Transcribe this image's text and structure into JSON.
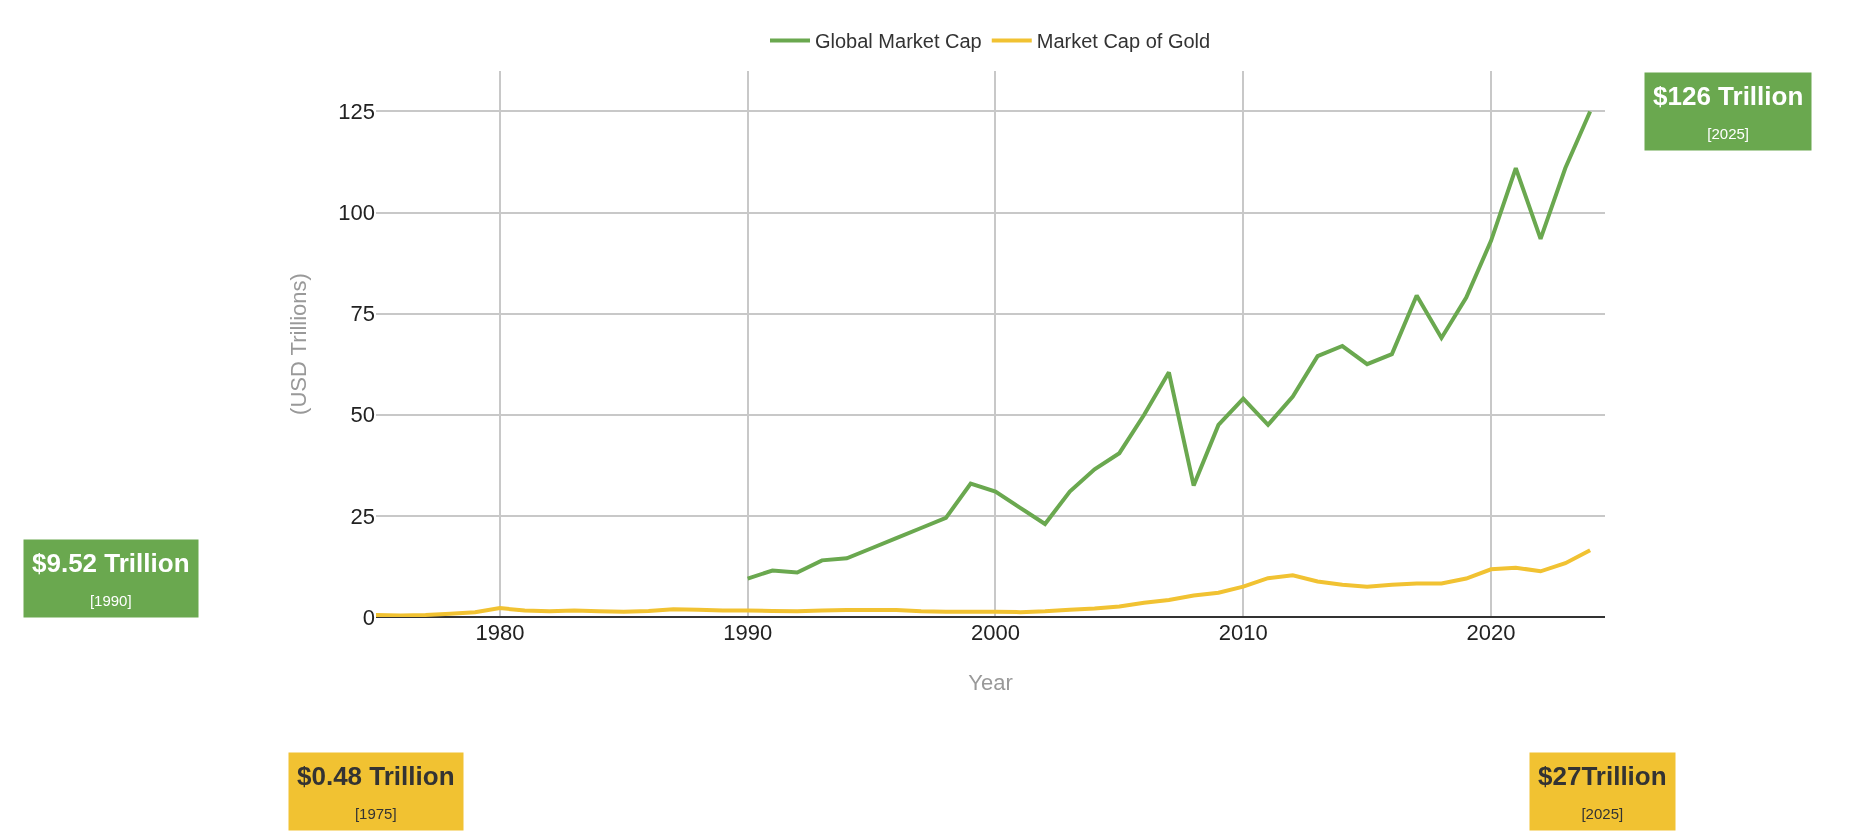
{
  "chart_data": {
    "type": "line",
    "xlabel": "Year",
    "ylabel": "(USD Trillions)",
    "xlim": [
      1975,
      2024.6
    ],
    "xticks": [
      1980,
      1990,
      2000,
      2010,
      2020
    ],
    "ylim": [
      0,
      135
    ],
    "yticks": [
      0,
      25,
      50,
      75,
      100,
      125
    ],
    "grid": true,
    "legend": "top",
    "marker": "none",
    "line_style": "solid",
    "series": [
      {
        "name": "Global Market Cap",
        "color": "#6aa84f",
        "x": [
          1990,
          1991,
          1992,
          1993,
          1994,
          1995,
          1996,
          1997,
          1998,
          1999,
          2000,
          2001,
          2002,
          2003,
          2004,
          2005,
          2006,
          2007,
          2008,
          2009,
          2010,
          2011,
          2012,
          2013,
          2014,
          2015,
          2016,
          2017,
          2018,
          2019,
          2020,
          2021,
          2022,
          2023,
          2024
        ],
        "values": [
          9.5,
          11.5,
          11,
          14,
          14.5,
          17,
          19.5,
          22,
          24.5,
          33,
          31,
          27,
          23,
          31,
          36.5,
          40.5,
          50,
          60.5,
          32.5,
          47.5,
          54,
          47.5,
          54.5,
          64.5,
          67,
          62.5,
          65,
          79.5,
          69,
          79,
          93,
          111,
          93.5,
          111,
          125
        ]
      },
      {
        "name": "Market Cap of Gold",
        "color": "#f1c232",
        "x": [
          1975,
          1976,
          1977,
          1978,
          1979,
          1980,
          1981,
          1982,
          1983,
          1984,
          1985,
          1986,
          1987,
          1988,
          1989,
          1990,
          1991,
          1992,
          1993,
          1994,
          1995,
          1996,
          1997,
          1998,
          1999,
          2000,
          2001,
          2002,
          2003,
          2004,
          2005,
          2006,
          2007,
          2008,
          2009,
          2010,
          2011,
          2012,
          2013,
          2014,
          2015,
          2016,
          2017,
          2018,
          2019,
          2020,
          2021,
          2022,
          2023,
          2024
        ],
        "values": [
          0.5,
          0.4,
          0.5,
          0.8,
          1.2,
          2.2,
          1.6,
          1.4,
          1.6,
          1.4,
          1.3,
          1.5,
          1.9,
          1.8,
          1.6,
          1.6,
          1.5,
          1.4,
          1.6,
          1.7,
          1.7,
          1.7,
          1.4,
          1.3,
          1.3,
          1.3,
          1.2,
          1.4,
          1.8,
          2.1,
          2.6,
          3.5,
          4.2,
          5.3,
          6,
          7.5,
          9.6,
          10.3,
          8.8,
          8,
          7.5,
          8,
          8.3,
          8.3,
          9.5,
          11.8,
          12.2,
          11.3,
          13.3,
          16.5
        ]
      }
    ],
    "annotations": [
      "$126 Trillion\n[2025]",
      "$9.52 Trillion\n[1990]",
      "$0.48 Trillion\n[1975]",
      "$27Trillion\n[2025]"
    ]
  }
}
